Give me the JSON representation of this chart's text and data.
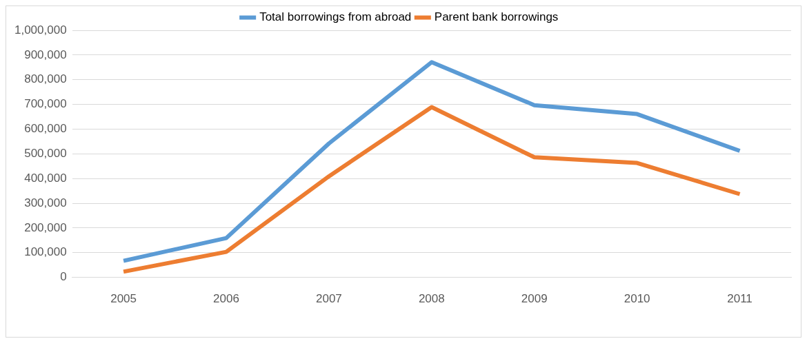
{
  "chart_data": {
    "type": "line",
    "categories": [
      "2005",
      "2006",
      "2007",
      "2008",
      "2009",
      "2010",
      "2011"
    ],
    "series": [
      {
        "name": "Total borrowings from abroad",
        "color": "#5b9bd5",
        "values": [
          67000,
          159000,
          542000,
          871000,
          697000,
          661000,
          512000
        ]
      },
      {
        "name": "Parent bank borrowings",
        "color": "#ed7d31",
        "values": [
          23000,
          103000,
          409000,
          689000,
          486000,
          463000,
          337000
        ]
      }
    ],
    "ylim": [
      0,
      1000000
    ],
    "yticks": [
      {
        "value": 0,
        "label": "0"
      },
      {
        "value": 100000,
        "label": "100,000"
      },
      {
        "value": 200000,
        "label": "200,000"
      },
      {
        "value": 300000,
        "label": "300,000"
      },
      {
        "value": 400000,
        "label": "400,000"
      },
      {
        "value": 500000,
        "label": "500,000"
      },
      {
        "value": 600000,
        "label": "600,000"
      },
      {
        "value": 700000,
        "label": "700,000"
      },
      {
        "value": 800000,
        "label": "800,000"
      },
      {
        "value": 900000,
        "label": "900,000"
      },
      {
        "value": 1000000,
        "label": "1,000,000"
      }
    ],
    "grid": "y",
    "legend": "top",
    "marker": "none",
    "line_style": "solid"
  }
}
